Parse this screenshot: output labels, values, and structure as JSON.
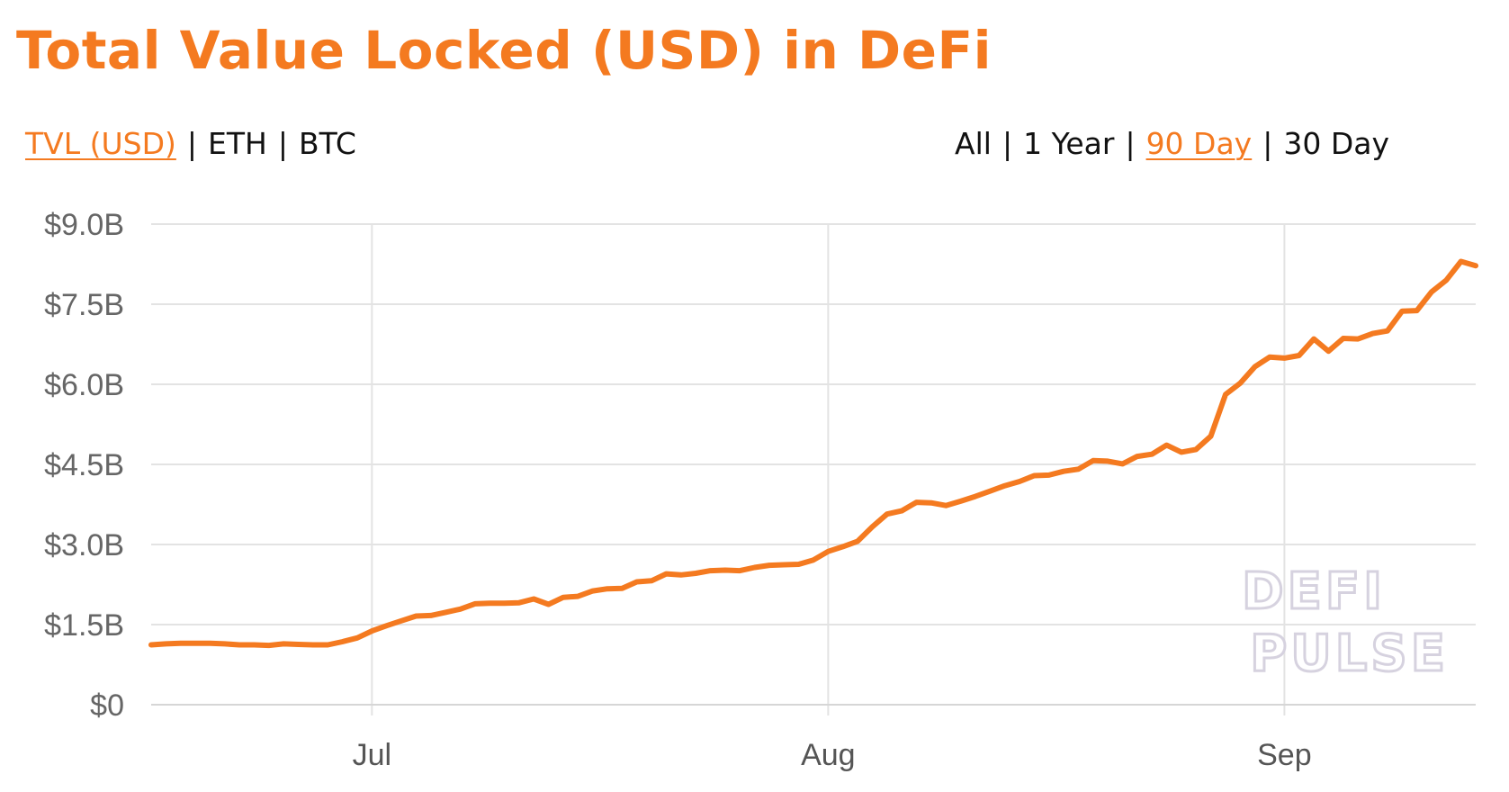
{
  "title": "Total Value Locked (USD) in DeFi",
  "unit_options": [
    {
      "label": "TVL (USD)",
      "active": true
    },
    {
      "label": "ETH",
      "active": false
    },
    {
      "label": "BTC",
      "active": false
    }
  ],
  "range_options": [
    {
      "label": "All",
      "active": false
    },
    {
      "label": "1 Year",
      "active": false
    },
    {
      "label": "90 Day",
      "active": true
    },
    {
      "label": "30 Day",
      "active": false
    }
  ],
  "separator": "|",
  "watermark": {
    "line1": "DEFI",
    "line2": "PULSE"
  },
  "colors": {
    "accent": "#f47a20",
    "grid": "#e3e3e3",
    "axis_text": "#666666"
  },
  "chart_data": {
    "type": "line",
    "title": "Total Value Locked (USD) in DeFi",
    "ylim": [
      0,
      9.0
    ],
    "yticks": [
      0,
      1.5,
      3.0,
      4.5,
      6.0,
      7.5,
      9.0
    ],
    "ytick_labels": [
      "$0",
      "$1.5B",
      "$3.0B",
      "$4.5B",
      "$6.0B",
      "$7.5B",
      "$9.0B"
    ],
    "xticks": [
      {
        "label": "Jul",
        "day": 15
      },
      {
        "label": "Aug",
        "day": 46
      },
      {
        "label": "Sep",
        "day": 77
      }
    ],
    "grid": true,
    "series": [
      {
        "color": "#f47a20",
        "values": [
          1.12,
          1.14,
          1.15,
          1.15,
          1.15,
          1.14,
          1.12,
          1.12,
          1.11,
          1.14,
          1.13,
          1.12,
          1.12,
          1.18,
          1.25,
          1.38,
          1.48,
          1.57,
          1.66,
          1.67,
          1.73,
          1.79,
          1.89,
          1.9,
          1.9,
          1.91,
          1.98,
          1.88,
          2.01,
          2.03,
          2.13,
          2.17,
          2.18,
          2.3,
          2.32,
          2.45,
          2.43,
          2.46,
          2.51,
          2.52,
          2.51,
          2.57,
          2.61,
          2.62,
          2.63,
          2.71,
          2.87,
          2.96,
          3.06,
          3.33,
          3.57,
          3.63,
          3.79,
          3.78,
          3.73,
          3.81,
          3.9,
          4.0,
          4.1,
          4.18,
          4.29,
          4.3,
          4.37,
          4.41,
          4.57,
          4.56,
          4.51,
          4.65,
          4.69,
          4.86,
          4.73,
          4.78,
          5.03,
          5.81,
          6.02,
          6.33,
          6.51,
          6.49,
          6.54,
          6.85,
          6.62,
          6.86,
          6.85,
          6.95,
          7.0,
          7.37,
          7.38,
          7.73,
          7.95,
          8.3,
          8.22
        ]
      }
    ]
  }
}
